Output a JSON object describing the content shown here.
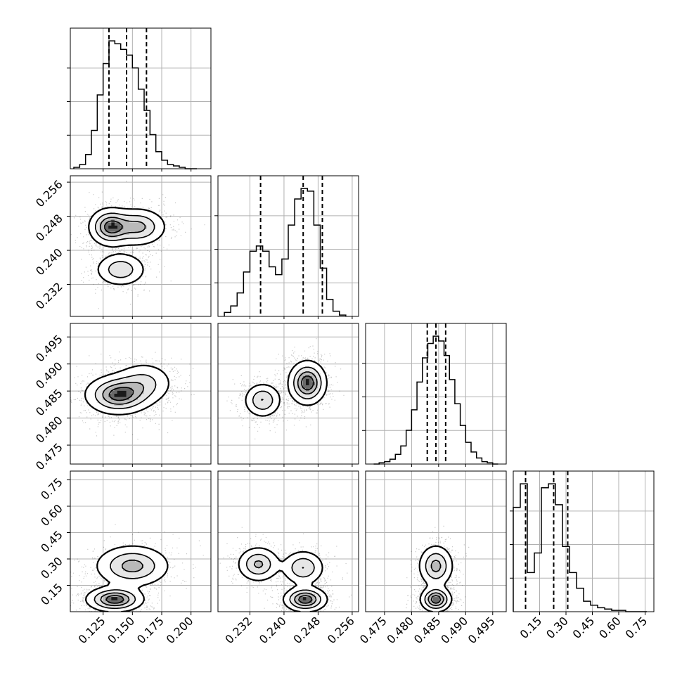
{
  "chart_data": {
    "type": "corner",
    "parameters": 4,
    "grid": true,
    "quantile_lines": "dashed",
    "tick_labels": {
      "p0": [
        "0.125",
        "0.150",
        "0.175",
        "0.200"
      ],
      "p1": [
        "0.232",
        "0.240",
        "0.248",
        "0.256"
      ],
      "p2": [
        "0.475",
        "0.480",
        "0.485",
        "0.490",
        "0.495"
      ],
      "p3": [
        "0.15",
        "0.30",
        "0.45",
        "0.60",
        "0.75"
      ]
    },
    "ranges": {
      "p0": [
        0.097,
        0.217
      ],
      "p1": [
        0.2245,
        0.2575
      ],
      "p2": [
        0.4715,
        0.4975
      ],
      "p3": [
        0.0,
        0.8
      ]
    },
    "tick_values": {
      "p0": [
        0.125,
        0.15,
        0.175,
        0.2
      ],
      "p1": [
        0.232,
        0.24,
        0.248,
        0.256
      ],
      "p2": [
        0.475,
        0.48,
        0.485,
        0.49,
        0.495
      ],
      "p3": [
        0.15,
        0.3,
        0.45,
        0.6,
        0.75
      ]
    },
    "quantiles": {
      "p0": [
        0.13,
        0.145,
        0.162
      ],
      "p1": [
        0.2345,
        0.2445,
        0.249
      ],
      "p2": [
        0.4829,
        0.4845,
        0.4863
      ],
      "p3": [
        0.07,
        0.23,
        0.31
      ]
    },
    "histograms": {
      "p0": {
        "edges": [
          0.1,
          0.105,
          0.11,
          0.115,
          0.12,
          0.125,
          0.13,
          0.135,
          0.14,
          0.145,
          0.15,
          0.155,
          0.16,
          0.165,
          0.17,
          0.175,
          0.18,
          0.185,
          0.19,
          0.195,
          0.2,
          0.205
        ],
        "counts": [
          1,
          3,
          10,
          27,
          52,
          74,
          90,
          88,
          84,
          80,
          71,
          56,
          41,
          24,
          12,
          6,
          3,
          2,
          1,
          0,
          0
        ]
      },
      "p1": {
        "edges": [
          0.226,
          0.2275,
          0.229,
          0.2305,
          0.232,
          0.2335,
          0.235,
          0.2365,
          0.238,
          0.2395,
          0.241,
          0.2425,
          0.244,
          0.2455,
          0.247,
          0.2485,
          0.25,
          0.2515,
          0.253,
          0.2545
        ],
        "counts": [
          3,
          8,
          18,
          34,
          50,
          54,
          50,
          38,
          32,
          44,
          70,
          90,
          98,
          96,
          70,
          37,
          13,
          4,
          1
        ]
      },
      "p2": {
        "edges": [
          0.473,
          0.474,
          0.475,
          0.476,
          0.477,
          0.478,
          0.479,
          0.48,
          0.481,
          0.482,
          0.483,
          0.484,
          0.485,
          0.486,
          0.487,
          0.488,
          0.489,
          0.49,
          0.491,
          0.492,
          0.493,
          0.494,
          0.495,
          0.496
        ],
        "counts": [
          0,
          1,
          2,
          4,
          8,
          15,
          28,
          45,
          68,
          88,
          100,
          106,
          102,
          90,
          70,
          50,
          32,
          18,
          10,
          5,
          2,
          1,
          0
        ]
      },
      "p3": {
        "edges": [
          0.0,
          0.04,
          0.08,
          0.12,
          0.16,
          0.2,
          0.24,
          0.28,
          0.32,
          0.36,
          0.4,
          0.44,
          0.48,
          0.52,
          0.56,
          0.6,
          0.64,
          0.68,
          0.72,
          0.76
        ],
        "counts": [
          80,
          98,
          30,
          45,
          95,
          98,
          82,
          50,
          30,
          18,
          8,
          5,
          3,
          2,
          1,
          1,
          0,
          0,
          0
        ]
      }
    },
    "modes": {
      "p0p1": [
        [
          0.131,
          0.2455,
          0.009,
          0.0022,
          1.0
        ],
        [
          0.155,
          0.2455,
          0.012,
          0.0022,
          0.75
        ],
        [
          0.14,
          0.2355,
          0.011,
          0.002,
          0.6
        ]
      ],
      "p0p2": [
        [
          0.138,
          0.4843,
          0.014,
          0.0018,
          1.0
        ],
        [
          0.16,
          0.4865,
          0.013,
          0.002,
          0.45
        ]
      ],
      "p0p3": [
        [
          0.15,
          0.26,
          0.016,
          0.06,
          0.7
        ],
        [
          0.135,
          0.07,
          0.012,
          0.035,
          1.0
        ]
      ],
      "p1p2": [
        [
          0.2455,
          0.4865,
          0.0022,
          0.002,
          1.0
        ],
        [
          0.235,
          0.4833,
          0.0022,
          0.0016,
          0.6
        ]
      ],
      "p1p3": [
        [
          0.234,
          0.27,
          0.0025,
          0.05,
          0.65
        ],
        [
          0.2445,
          0.25,
          0.0025,
          0.05,
          0.6
        ],
        [
          0.245,
          0.07,
          0.0025,
          0.035,
          1.0
        ]
      ],
      "p2p3": [
        [
          0.4845,
          0.26,
          0.0016,
          0.06,
          0.7
        ],
        [
          0.4845,
          0.07,
          0.0014,
          0.035,
          1.0
        ]
      ]
    }
  }
}
